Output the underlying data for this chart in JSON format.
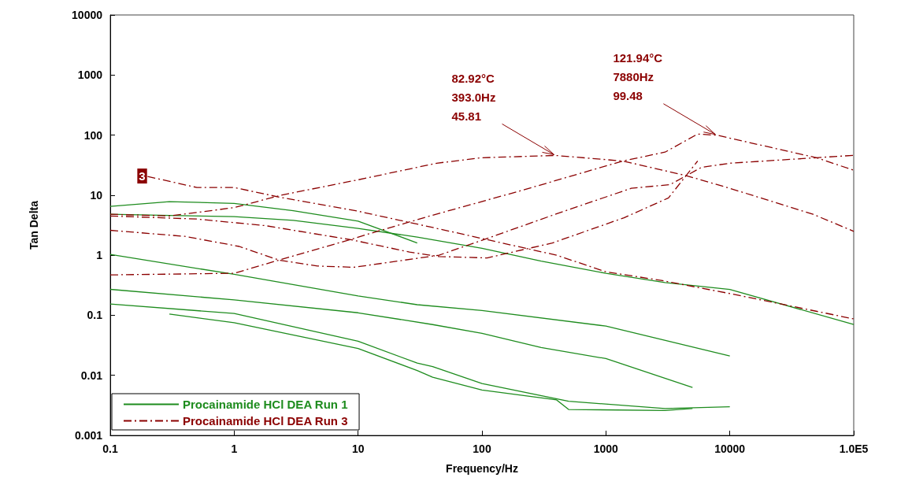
{
  "chart_data": {
    "type": "line",
    "xlabel": "Frequency/Hz",
    "ylabel": "Tan Delta",
    "log": "xy",
    "grid": false,
    "legend": "bottom left",
    "marker": "none",
    "xlim": [
      0.1,
      100000
    ],
    "xticks": [
      0.1,
      1,
      10,
      100,
      1000,
      10000,
      {
        "value": 100000,
        "label": "1.0E5"
      }
    ],
    "ylim": [
      0.001,
      10000
    ],
    "yticks": [
      0.001,
      0.01,
      0.1,
      1,
      10,
      100,
      1000,
      10000
    ],
    "annotations": [
      {
        "text": "82.92°C\n393.0Hz\n45.81",
        "x": 393,
        "y": 45.81
      },
      {
        "text": "121.94°C\n7880Hz\n99.48",
        "x": 7880,
        "y": 99.48
      },
      {
        "text": "3",
        "x": 0.2,
        "y": 20.5
      }
    ],
    "series": [
      {
        "name": "Procainamide HCl DEA Run 1",
        "color": "#1e8c1e",
        "line_style": "solid",
        "x": [
          0.1,
          0.3,
          1,
          3,
          10,
          30
        ],
        "values": [
          6.5,
          7.8,
          7.3,
          5.5,
          3.7,
          1.6
        ]
      },
      {
        "color": "#1e8c1e",
        "line_style": "solid",
        "x": [
          0.1,
          0.3,
          1,
          3,
          10,
          30,
          100,
          300,
          1000,
          3000,
          10000,
          100000
        ],
        "values": [
          4.8,
          4.6,
          4.4,
          3.8,
          2.8,
          2.0,
          1.3,
          0.8,
          0.5,
          0.35,
          0.27,
          0.07
        ]
      },
      {
        "color": "#1e8c1e",
        "line_style": "solid",
        "x": [
          0.1,
          1,
          10,
          30,
          100,
          1000,
          10000
        ],
        "values": [
          1.03,
          0.48,
          0.21,
          0.15,
          0.12,
          0.066,
          0.021
        ]
      },
      {
        "color": "#1e8c1e",
        "line_style": "solid",
        "x": [
          0.1,
          1,
          10,
          40,
          100,
          300,
          1000,
          5000
        ],
        "values": [
          0.27,
          0.18,
          0.11,
          0.07,
          0.05,
          0.029,
          0.019,
          0.0063
        ]
      },
      {
        "color": "#1e8c1e",
        "line_style": "solid",
        "x": [
          0.1,
          1,
          10,
          30,
          40,
          100,
          500,
          3000,
          10000
        ],
        "values": [
          0.154,
          0.107,
          0.037,
          0.016,
          0.014,
          0.0073,
          0.0037,
          0.0028,
          0.003
        ]
      },
      {
        "color": "#1e8c1e",
        "line_style": "solid",
        "x": [
          0.3,
          1,
          10,
          30,
          40,
          100,
          400,
          500,
          3000,
          5000
        ],
        "values": [
          0.105,
          0.075,
          0.028,
          0.012,
          0.0093,
          0.0057,
          0.0039,
          0.0027,
          0.0026,
          0.0028
        ]
      },
      {
        "name": "Procainamide HCl DEA Run 3",
        "color": "#8b0000",
        "line_style": "dashed",
        "x": [
          0.2,
          0.5,
          1,
          2.3,
          10,
          43,
          100,
          400,
          1000,
          2800,
          10000,
          100000
        ],
        "values": [
          20.5,
          13.4,
          13.4,
          9.3,
          5.4,
          2.8,
          1.9,
          1.0,
          0.53,
          0.38,
          0.23,
          0.087
        ]
      },
      {
        "color": "#8b0000",
        "line_style": "dashed",
        "x": [
          0.1,
          0.3,
          1,
          2.4,
          10,
          43,
          100,
          393,
          1370,
          4500,
          10000,
          47000,
          100000
        ],
        "values": [
          4.8,
          4.5,
          6.2,
          10,
          18,
          34,
          42,
          45.81,
          37,
          21,
          13,
          4.8,
          2.5
        ]
      },
      {
        "color": "#8b0000",
        "line_style": "dashed",
        "x": [
          0.1,
          0.5,
          1.8,
          8.9,
          26,
          45,
          110,
          370,
          1400,
          3200,
          5500
        ],
        "values": [
          4.5,
          4.0,
          3.1,
          1.8,
          1.13,
          0.95,
          0.9,
          1.6,
          4.2,
          9,
          37
        ]
      },
      {
        "color": "#8b0000",
        "line_style": "dashed",
        "x": [
          0.1,
          1,
          2.3,
          8.5,
          12.5,
          38,
          210,
          1370,
          3000,
          5500,
          7880,
          50000,
          100000
        ],
        "values": [
          0.47,
          0.5,
          0.83,
          1.8,
          2.3,
          4.5,
          12,
          37,
          52,
          104,
          99.48,
          42,
          26
        ]
      },
      {
        "color": "#8b0000",
        "line_style": "dashed",
        "x": [
          0.1,
          0.4,
          1.1,
          2.3,
          4.7,
          9.3,
          45,
          110,
          390,
          1600,
          3300,
          5900,
          10000,
          100000
        ],
        "values": [
          2.6,
          2.06,
          1.4,
          0.83,
          0.66,
          0.63,
          1.0,
          1.9,
          4.8,
          13,
          15,
          29,
          34,
          46
        ]
      }
    ]
  }
}
